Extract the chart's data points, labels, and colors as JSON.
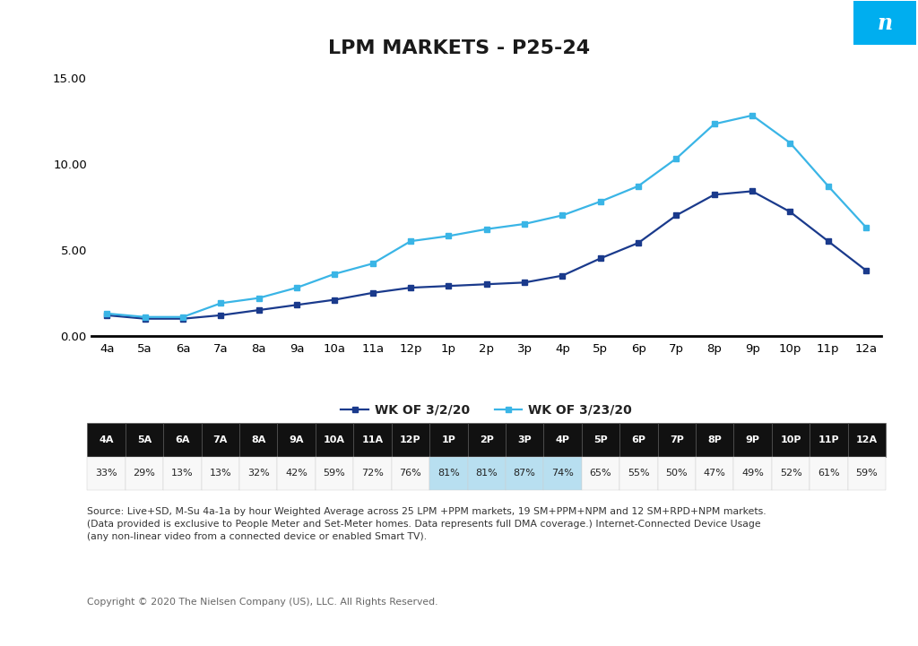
{
  "title": "LPM MARKETS - P25-24",
  "x_labels": [
    "4a",
    "5a",
    "6a",
    "7a",
    "8a",
    "9a",
    "10a",
    "11a",
    "12p",
    "1p",
    "2p",
    "3p",
    "4p",
    "5p",
    "6p",
    "7p",
    "8p",
    "9p",
    "10p",
    "11p",
    "12a"
  ],
  "series1_label": "WK OF 3/2/20",
  "series2_label": "WK OF 3/23/20",
  "series1_color": "#1a3a8c",
  "series2_color": "#3ab5e6",
  "series1_values": [
    1.2,
    1.0,
    1.0,
    1.2,
    1.5,
    1.8,
    2.1,
    2.5,
    2.8,
    2.9,
    3.0,
    3.1,
    3.5,
    4.5,
    5.4,
    7.0,
    8.2,
    8.4,
    7.2,
    5.5,
    3.8
  ],
  "series2_values": [
    1.3,
    1.1,
    1.1,
    1.9,
    2.2,
    2.8,
    3.6,
    4.2,
    5.5,
    5.8,
    6.2,
    6.5,
    7.0,
    7.8,
    8.7,
    10.3,
    12.3,
    12.8,
    11.2,
    8.7,
    6.3
  ],
  "ylim": [
    0,
    15
  ],
  "yticks": [
    0.0,
    5.0,
    10.0,
    15.0
  ],
  "ytick_labels": [
    "0.00",
    "5.00",
    "10.00",
    "15.00"
  ],
  "table_headers": [
    "4A",
    "5A",
    "6A",
    "7A",
    "8A",
    "9A",
    "10A",
    "11A",
    "12P",
    "1P",
    "2P",
    "3P",
    "4P",
    "5P",
    "6P",
    "7P",
    "8P",
    "9P",
    "10P",
    "11P",
    "12A"
  ],
  "table_values": [
    "33%",
    "29%",
    "13%",
    "13%",
    "32%",
    "42%",
    "59%",
    "72%",
    "76%",
    "81%",
    "81%",
    "87%",
    "74%",
    "65%",
    "55%",
    "50%",
    "47%",
    "49%",
    "52%",
    "61%",
    "59%"
  ],
  "highlight_cols": [
    9,
    10,
    11,
    12
  ],
  "highlight_color": "#b8dff0",
  "bg_color": "#ffffff",
  "source_text": "Source: Live+SD, M-Su 4a-1a by hour Weighted Average across 25 LPM +PPM markets, 19 SM+PPM+NPM and 12 SM+RPD+NPM markets.\n(Data provided is exclusive to People Meter and Set-Meter homes. Data represents full DMA coverage.) Internet-Connected Device Usage\n(any non-linear video from a connected device or enabled Smart TV).",
  "copyright_text": "Copyright © 2020 The Nielsen Company (US), LLC. All Rights Reserved.",
  "nielsen_bg": "#00aeef",
  "nielsen_text": "n"
}
